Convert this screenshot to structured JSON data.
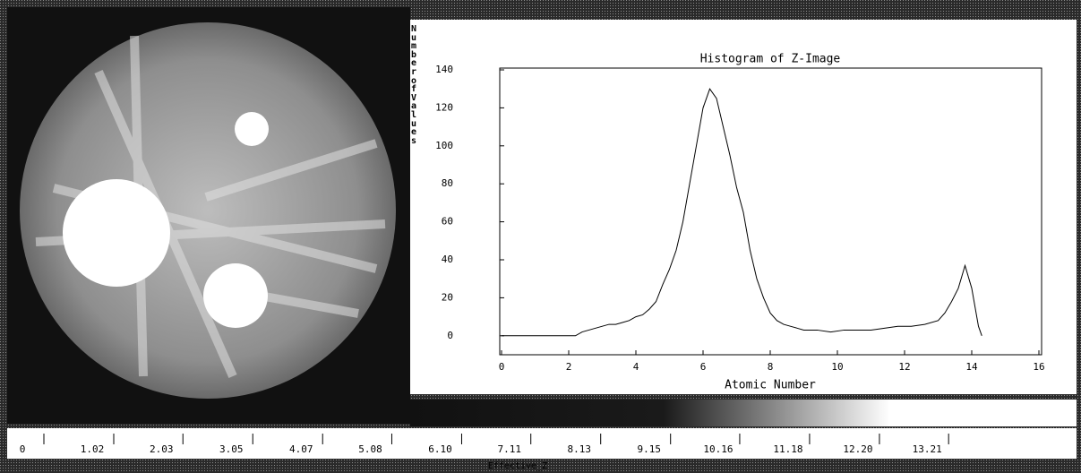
{
  "chart_data": {
    "type": "line",
    "title": "Histogram of Z-Image",
    "x_label": "Atomic Number",
    "y_label": "Number of Values",
    "x": [
      0,
      2.0,
      2.2,
      2.4,
      2.6,
      2.8,
      3.0,
      3.2,
      3.4,
      3.6,
      3.8,
      4.0,
      4.2,
      4.4,
      4.6,
      4.8,
      5.0,
      5.2,
      5.4,
      5.6,
      5.8,
      6.0,
      6.2,
      6.4,
      6.6,
      6.8,
      7.0,
      7.2,
      7.4,
      7.6,
      7.8,
      8.0,
      8.2,
      8.4,
      8.6,
      8.8,
      9.0,
      9.4,
      9.8,
      10.2,
      10.6,
      11.0,
      11.4,
      11.8,
      12.2,
      12.6,
      13.0,
      13.2,
      13.4,
      13.6,
      13.8,
      14.0,
      14.2,
      14.3
    ],
    "values": [
      0,
      0,
      0,
      2,
      3,
      4,
      5,
      6,
      6,
      7,
      8,
      10,
      11,
      14,
      18,
      27,
      35,
      45,
      60,
      80,
      100,
      120,
      130,
      125,
      110,
      95,
      78,
      65,
      45,
      30,
      20,
      12,
      8,
      6,
      5,
      4,
      3,
      3,
      2,
      3,
      3,
      3,
      4,
      5,
      5,
      6,
      8,
      12,
      18,
      25,
      37,
      25,
      5,
      0
    ],
    "color": "#000000",
    "xlim": [
      0,
      16
    ],
    "xticks": [
      0,
      2,
      4,
      6,
      8,
      10,
      12,
      14,
      16
    ],
    "ylim": [
      -10,
      140
    ],
    "yticks": [
      0,
      20,
      40,
      60,
      80,
      100,
      120,
      140
    ]
  },
  "colorbar": {
    "label": "Effective_Z",
    "range": [
      0,
      15.3
    ],
    "ticks": [
      0,
      1.02,
      2.03,
      3.05,
      4.07,
      5.08,
      {
        "value": 6.1,
        "label": "6.10"
      },
      7.11,
      8.13,
      9.15,
      10.16,
      11.18,
      {
        "value": 12.2,
        "label": "12.20"
      },
      13.21
    ]
  }
}
